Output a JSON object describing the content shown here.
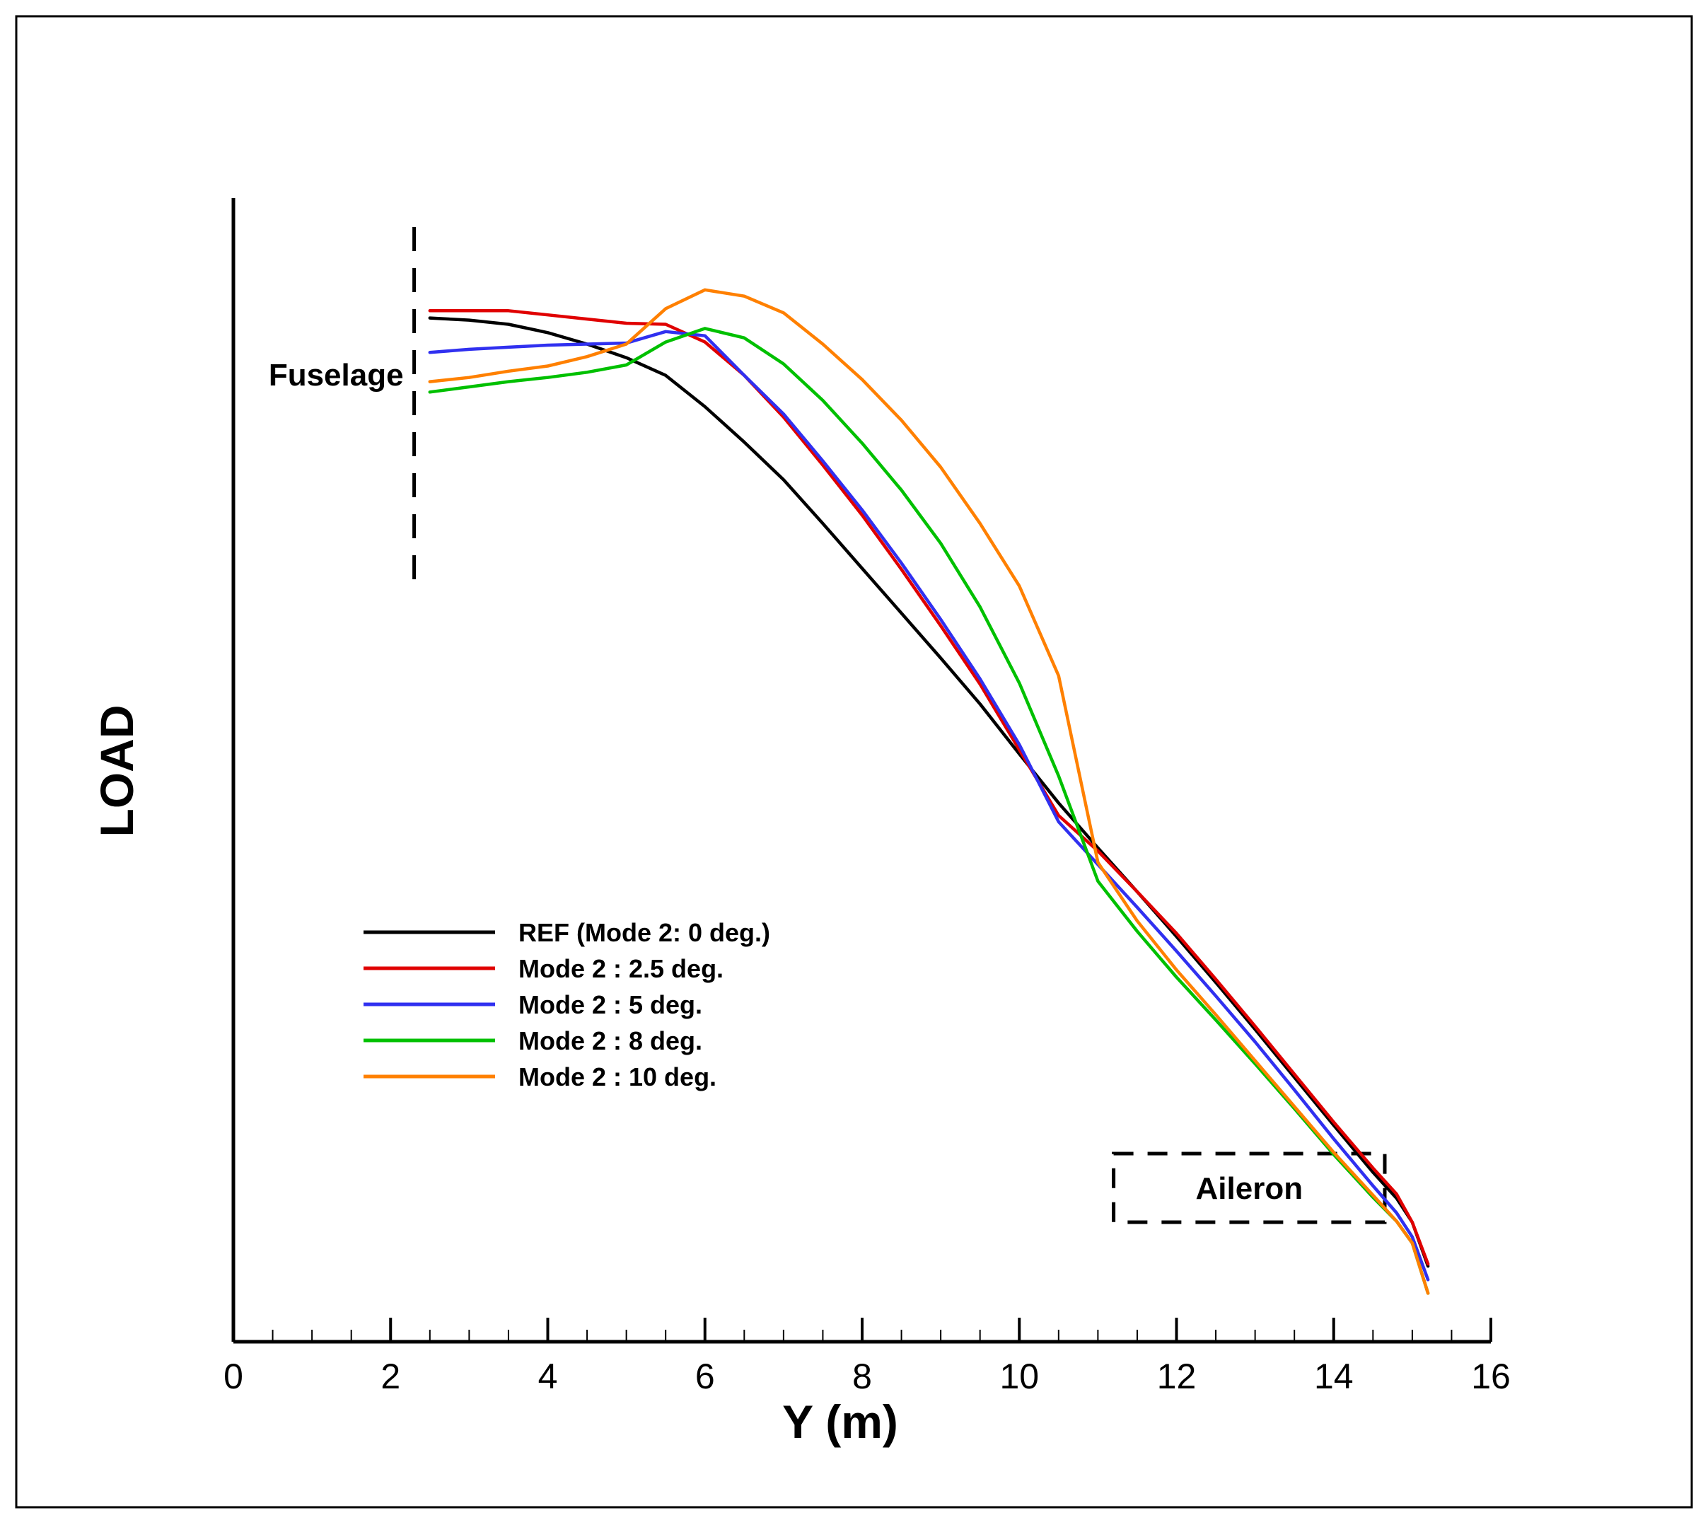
{
  "chart_data": {
    "type": "line",
    "title": "",
    "xlabel": "Y (m)",
    "ylabel": "LOAD",
    "xlim": [
      0,
      16
    ],
    "x_ticks": [
      0,
      2,
      4,
      6,
      8,
      10,
      12,
      14,
      16
    ],
    "x_tick_labels": [
      "0",
      "2",
      "4",
      "6",
      "8",
      "10",
      "12",
      "14",
      "16"
    ],
    "ylim": [
      0,
      1
    ],
    "y_tick_labels": [],
    "grid": false,
    "legend_position": "middle-left",
    "annotations": {
      "fuselage": {
        "label": "Fuselage",
        "x": 2.3
      },
      "aileron": {
        "label": "Aileron",
        "x_range": [
          11.2,
          14.65
        ]
      }
    },
    "series": [
      {
        "name": "REF (Mode 2: 0 deg.)",
        "color": "#000000",
        "x": [
          2.5,
          3,
          3.5,
          4,
          4.5,
          5,
          5.5,
          6,
          6.5,
          7,
          7.5,
          8,
          8.5,
          9,
          9.5,
          10,
          10.5,
          11,
          11.5,
          12,
          12.5,
          13,
          13.5,
          14,
          14.5,
          14.8,
          15,
          15.2
        ],
        "values": [
          0.895,
          0.893,
          0.889,
          0.881,
          0.87,
          0.857,
          0.84,
          0.81,
          0.776,
          0.74,
          0.698,
          0.655,
          0.612,
          0.569,
          0.525,
          0.477,
          0.43,
          0.387,
          0.345,
          0.302,
          0.258,
          0.213,
          0.167,
          0.121,
          0.076,
          0.051,
          0.028,
          -0.014
        ]
      },
      {
        "name": "Mode 2 : 2.5 deg.",
        "color": "#e00000",
        "x": [
          2.5,
          3,
          3.5,
          4,
          4.5,
          5,
          5.5,
          6,
          6.5,
          7,
          7.5,
          8,
          8.5,
          9,
          9.5,
          10,
          10.5,
          11,
          11.5,
          12,
          12.5,
          13,
          13.5,
          14,
          14.5,
          14.8,
          15,
          15.2
        ],
        "values": [
          0.902,
          0.902,
          0.902,
          0.898,
          0.894,
          0.89,
          0.889,
          0.872,
          0.84,
          0.8,
          0.754,
          0.706,
          0.654,
          0.6,
          0.544,
          0.481,
          0.418,
          0.384,
          0.345,
          0.305,
          0.261,
          0.216,
          0.17,
          0.124,
          0.08,
          0.055,
          0.028,
          -0.012
        ]
      },
      {
        "name": "Mode 2 : 5 deg.",
        "color": "#3030f0",
        "x": [
          2.5,
          3,
          3.5,
          4,
          4.5,
          5,
          5.5,
          6,
          6.5,
          7,
          7.5,
          8,
          8.5,
          9,
          9.5,
          10,
          10.5,
          11,
          11.5,
          12,
          12.5,
          13,
          13.5,
          14,
          14.5,
          14.8,
          15,
          15.2
        ],
        "values": [
          0.862,
          0.865,
          0.867,
          0.869,
          0.87,
          0.871,
          0.882,
          0.878,
          0.84,
          0.803,
          0.758,
          0.711,
          0.66,
          0.606,
          0.549,
          0.486,
          0.412,
          0.371,
          0.33,
          0.288,
          0.245,
          0.201,
          0.155,
          0.108,
          0.063,
          0.037,
          0.014,
          -0.027
        ]
      },
      {
        "name": "Mode 2 : 8 deg.",
        "color": "#00c000",
        "x": [
          2.5,
          3,
          3.5,
          4,
          4.5,
          5,
          5.5,
          6,
          6.5,
          7,
          7.5,
          8,
          8.5,
          9,
          9.5,
          10,
          10.5,
          11,
          11.5,
          12,
          12.5,
          13,
          13.5,
          14,
          14.5,
          14.8,
          15,
          15.2
        ],
        "values": [
          0.824,
          0.829,
          0.834,
          0.838,
          0.843,
          0.85,
          0.872,
          0.885,
          0.876,
          0.851,
          0.816,
          0.775,
          0.73,
          0.679,
          0.618,
          0.545,
          0.456,
          0.355,
          0.307,
          0.263,
          0.222,
          0.18,
          0.137,
          0.093,
          0.052,
          0.029,
          0.008,
          -0.04
        ]
      },
      {
        "name": "Mode 2 : 10 deg.",
        "color": "#ff8000",
        "x": [
          2.5,
          3,
          3.5,
          4,
          4.5,
          5,
          5.5,
          6,
          6.5,
          7,
          7.5,
          8,
          8.5,
          9,
          9.5,
          10,
          10.5,
          11,
          11.5,
          12,
          12.5,
          13,
          13.5,
          14,
          14.5,
          14.8,
          15,
          15.2
        ],
        "values": [
          0.834,
          0.838,
          0.844,
          0.849,
          0.858,
          0.87,
          0.904,
          0.922,
          0.916,
          0.9,
          0.87,
          0.836,
          0.797,
          0.752,
          0.698,
          0.638,
          0.552,
          0.373,
          0.317,
          0.27,
          0.227,
          0.183,
          0.139,
          0.095,
          0.054,
          0.029,
          0.008,
          -0.04
        ]
      }
    ]
  }
}
